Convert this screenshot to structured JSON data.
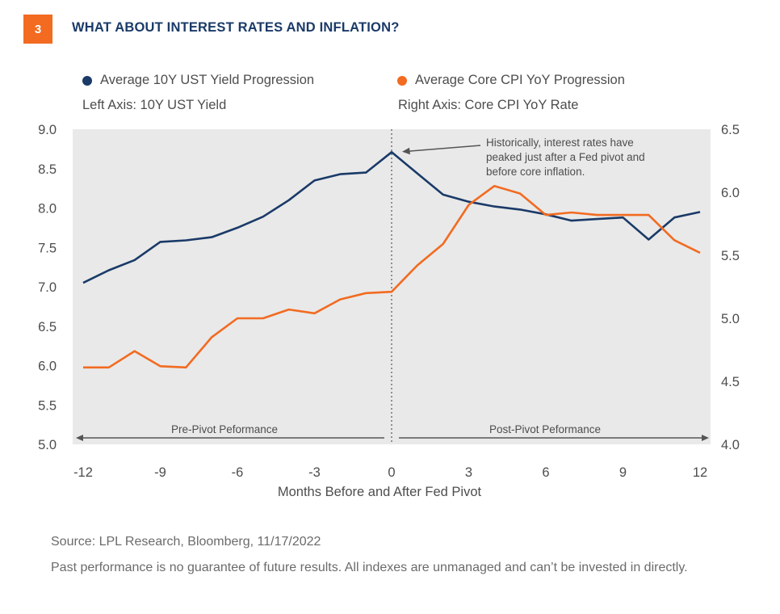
{
  "header": {
    "badge": "3",
    "title": "WHAT ABOUT INTEREST RATES AND INFLATION?"
  },
  "legend": {
    "items": [
      {
        "label": "Average 10Y UST Yield Progression",
        "color": "#1a3a68"
      },
      {
        "label": "Average Core CPI YoY Progression",
        "color": "#f26b21"
      }
    ],
    "left_axis_note": "Left Axis: 10Y UST Yield",
    "right_axis_note": "Right Axis: Core CPI YoY Rate"
  },
  "chart_data": {
    "type": "line",
    "xlabel": "Months Before and After Fed Pivot",
    "x": [
      -12,
      -11,
      -10,
      -9,
      -8,
      -7,
      -6,
      -5,
      -4,
      -3,
      -2,
      -1,
      0,
      1,
      2,
      3,
      4,
      5,
      6,
      7,
      8,
      9,
      10,
      11,
      12
    ],
    "x_ticks": [
      -12,
      -9,
      -6,
      -3,
      0,
      3,
      6,
      9,
      12
    ],
    "xlim": [
      -12,
      12
    ],
    "y_left_lim": [
      5.0,
      9.0
    ],
    "y_left_ticks": [
      "5.0",
      "5.5",
      "6.0",
      "6.5",
      "7.0",
      "7.5",
      "8.0",
      "8.5",
      "9.0"
    ],
    "y_right_lim": [
      4.0,
      6.5
    ],
    "y_right_ticks": [
      "4.0",
      "4.5",
      "5.0",
      "5.5",
      "6.0",
      "6.5"
    ],
    "series": [
      {
        "name": "Average 10Y UST Yield Progression",
        "axis": "left",
        "color": "#1a3a68",
        "values": [
          7.05,
          7.21,
          7.34,
          7.57,
          7.59,
          7.63,
          7.75,
          7.89,
          8.1,
          8.35,
          8.43,
          8.45,
          8.71,
          8.44,
          8.17,
          8.08,
          8.02,
          7.98,
          7.92,
          7.84,
          7.86,
          7.88,
          7.6,
          7.88,
          7.95
        ]
      },
      {
        "name": "Average Core CPI YoY Progression",
        "axis": "right",
        "color": "#f26b21",
        "values": [
          4.61,
          4.61,
          4.74,
          4.62,
          4.61,
          4.85,
          5.0,
          5.0,
          5.07,
          5.04,
          5.15,
          5.2,
          5.21,
          5.42,
          5.59,
          5.9,
          6.05,
          5.99,
          5.82,
          5.84,
          5.82,
          5.82,
          5.82,
          5.62,
          5.52
        ]
      }
    ],
    "annotations": {
      "pivot_note": [
        "Historically, interest rates have",
        "peaked just after a Fed pivot and",
        "before core inflation."
      ],
      "pre_label": "Pre-Pivot Peformance",
      "post_label": "Post-Pivot Peformance"
    },
    "plot_background": "#e9e9e9"
  },
  "footer": {
    "source": "Source: LPL Research, Bloomberg,  11/17/2022",
    "disclaimer": "Past performance is no guarantee of future results. All indexes are unmanaged and can’t be invested in directly."
  }
}
